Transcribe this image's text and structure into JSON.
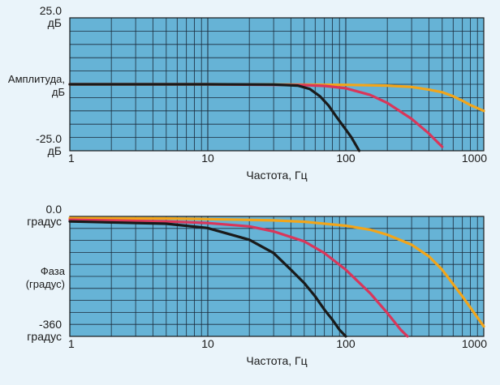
{
  "chart_data": [
    {
      "type": "line",
      "xscale": "log",
      "xlim": [
        1,
        1000
      ],
      "ylim": [
        -25,
        25
      ],
      "grid": true,
      "xlabel": "Частота, Гц",
      "ylabel_lines": [
        "Амплитуда,",
        "дБ"
      ],
      "top_label_lines": [
        "25.0",
        "дБ"
      ],
      "bottom_label_lines": [
        "-25.0",
        "дБ"
      ],
      "x_ticks": [
        {
          "value": 1,
          "label": "1"
        },
        {
          "value": 10,
          "label": "10"
        },
        {
          "value": 100,
          "label": "100"
        },
        {
          "value": 1000,
          "label": "1000"
        }
      ],
      "background_color": "#66b3d6",
      "series": [
        {
          "color": "#f2a51a",
          "x": [
            1,
            10,
            100,
            200,
            300,
            400,
            500,
            600,
            700,
            800,
            1000
          ],
          "y": [
            0,
            0,
            -0.2,
            -0.5,
            -1,
            -2,
            -3,
            -4.5,
            -6.2,
            -7.8,
            -10
          ]
        },
        {
          "color": "#d9365a",
          "x": [
            1,
            10,
            50,
            70,
            100,
            150,
            200,
            300,
            400,
            500
          ],
          "y": [
            0,
            0,
            -0.3,
            -0.6,
            -1.5,
            -4,
            -7,
            -13,
            -18.5,
            -23.5
          ]
        },
        {
          "color": "#1a1a1a",
          "x": [
            1,
            10,
            30,
            45,
            55,
            65,
            75,
            85,
            100,
            110,
            125
          ],
          "y": [
            0,
            0,
            -0.1,
            -0.5,
            -1.8,
            -4.5,
            -8,
            -12,
            -17,
            -20,
            -25
          ]
        }
      ]
    },
    {
      "type": "line",
      "xscale": "log",
      "xlim": [
        1,
        1000
      ],
      "ylim": [
        -360,
        0
      ],
      "grid": true,
      "xlabel": "Частота, Гц",
      "ylabel_lines": [
        "Фаза",
        "(градус)"
      ],
      "top_label_lines": [
        "0.0",
        "градус"
      ],
      "bottom_label_lines": [
        "-360",
        "градус"
      ],
      "x_ticks": [
        {
          "value": 1,
          "label": "1"
        },
        {
          "value": 10,
          "label": "10"
        },
        {
          "value": 100,
          "label": "100"
        },
        {
          "value": 1000,
          "label": "1000"
        }
      ],
      "background_color": "#66b3d6",
      "series": [
        {
          "color": "#f2a51a",
          "x": [
            1,
            5,
            10,
            30,
            50,
            100,
            150,
            200,
            300,
            400,
            500,
            700,
            1000
          ],
          "y": [
            -5,
            -6,
            -8,
            -12,
            -16,
            -28,
            -40,
            -55,
            -85,
            -120,
            -160,
            -240,
            -330
          ]
        },
        {
          "color": "#d9365a",
          "x": [
            1,
            5,
            10,
            20,
            30,
            50,
            70,
            100,
            150,
            200,
            250,
            280
          ],
          "y": [
            -10,
            -15,
            -20,
            -30,
            -45,
            -75,
            -110,
            -160,
            -230,
            -290,
            -340,
            -360
          ]
        },
        {
          "color": "#1a1a1a",
          "x": [
            1,
            5,
            10,
            20,
            30,
            40,
            50,
            60,
            70,
            80,
            90,
            100
          ],
          "y": [
            -15,
            -22,
            -35,
            -70,
            -110,
            -160,
            -200,
            -240,
            -280,
            -310,
            -340,
            -360
          ]
        }
      ]
    }
  ]
}
